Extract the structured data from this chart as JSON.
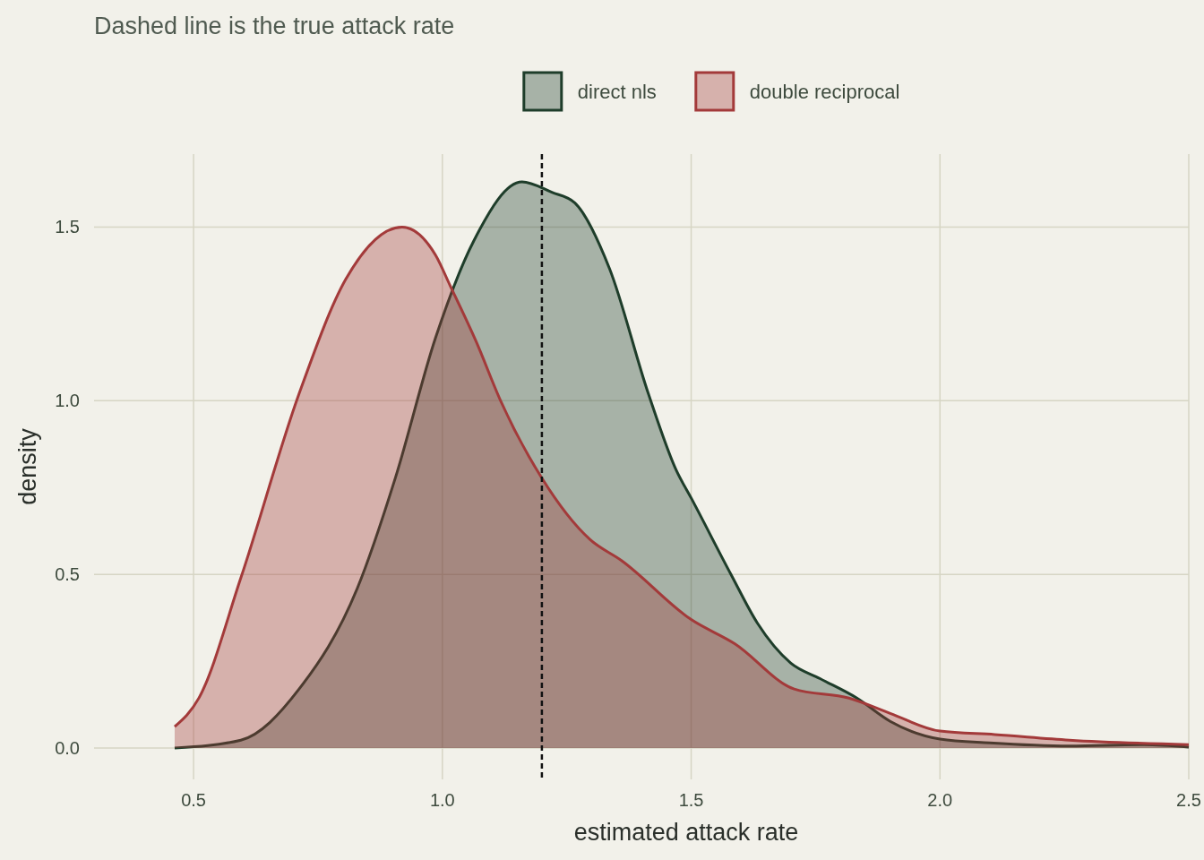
{
  "chart_data": {
    "type": "area",
    "title": "Dashed line is the true attack rate",
    "xlabel": "estimated attack rate",
    "ylabel": "density",
    "xlim": [
      0.3,
      2.5
    ],
    "ylim": [
      -0.09,
      1.71
    ],
    "xticks": [
      {
        "value": 0.5,
        "label": "0.5"
      },
      {
        "value": 1,
        "label": "1.0"
      },
      {
        "value": 1.5,
        "label": "1.5"
      },
      {
        "value": 2,
        "label": "2.0"
      },
      {
        "value": 2.5,
        "label": "2.5"
      }
    ],
    "yticks": [
      {
        "value": 0,
        "label": "0.0"
      },
      {
        "value": 0.5,
        "label": "0.5"
      },
      {
        "value": 1,
        "label": "1.0"
      },
      {
        "value": 1.5,
        "label": "1.5"
      }
    ],
    "grid": true,
    "legend": "top",
    "ref_lines": [
      {
        "axis": "x",
        "value": 1.2,
        "color": "#111111",
        "line_style": "dashed"
      }
    ],
    "series": [
      {
        "name": "direct nls",
        "color": "#1e3d2a",
        "x": [
          0.462,
          0.595,
          0.712,
          0.829,
          0.906,
          0.986,
          1.063,
          1.16,
          1.22,
          1.266,
          1.336,
          1.414,
          1.47,
          1.5,
          1.58,
          1.633,
          1.7,
          1.759,
          1.833,
          1.9,
          2.0,
          2.1,
          2.26,
          2.41,
          2.5
        ],
        "values": [
          0,
          0.023,
          0.17,
          0.46,
          0.78,
          1.18,
          1.46,
          1.63,
          1.6,
          1.57,
          1.38,
          1.02,
          0.8,
          0.72,
          0.5,
          0.36,
          0.245,
          0.2,
          0.144,
          0.077,
          0.026,
          0.015,
          0.006,
          0.01,
          0.003
        ]
      },
      {
        "name": "double reciprocal",
        "color": "#a33a3a",
        "x": [
          0.462,
          0.511,
          0.595,
          0.712,
          0.806,
          0.919,
          0.986,
          1.016,
          1.068,
          1.117,
          1.2,
          1.297,
          1.36,
          1.5,
          1.588,
          1.707,
          1.817,
          1.9,
          2.0,
          2.11,
          2.26,
          2.5
        ],
        "values": [
          0.062,
          0.145,
          0.49,
          1.02,
          1.35,
          1.5,
          1.42,
          1.33,
          1.17,
          1.0,
          0.777,
          0.6,
          0.54,
          0.37,
          0.3,
          0.17,
          0.144,
          0.1,
          0.049,
          0.039,
          0.023,
          0.01
        ]
      }
    ]
  }
}
